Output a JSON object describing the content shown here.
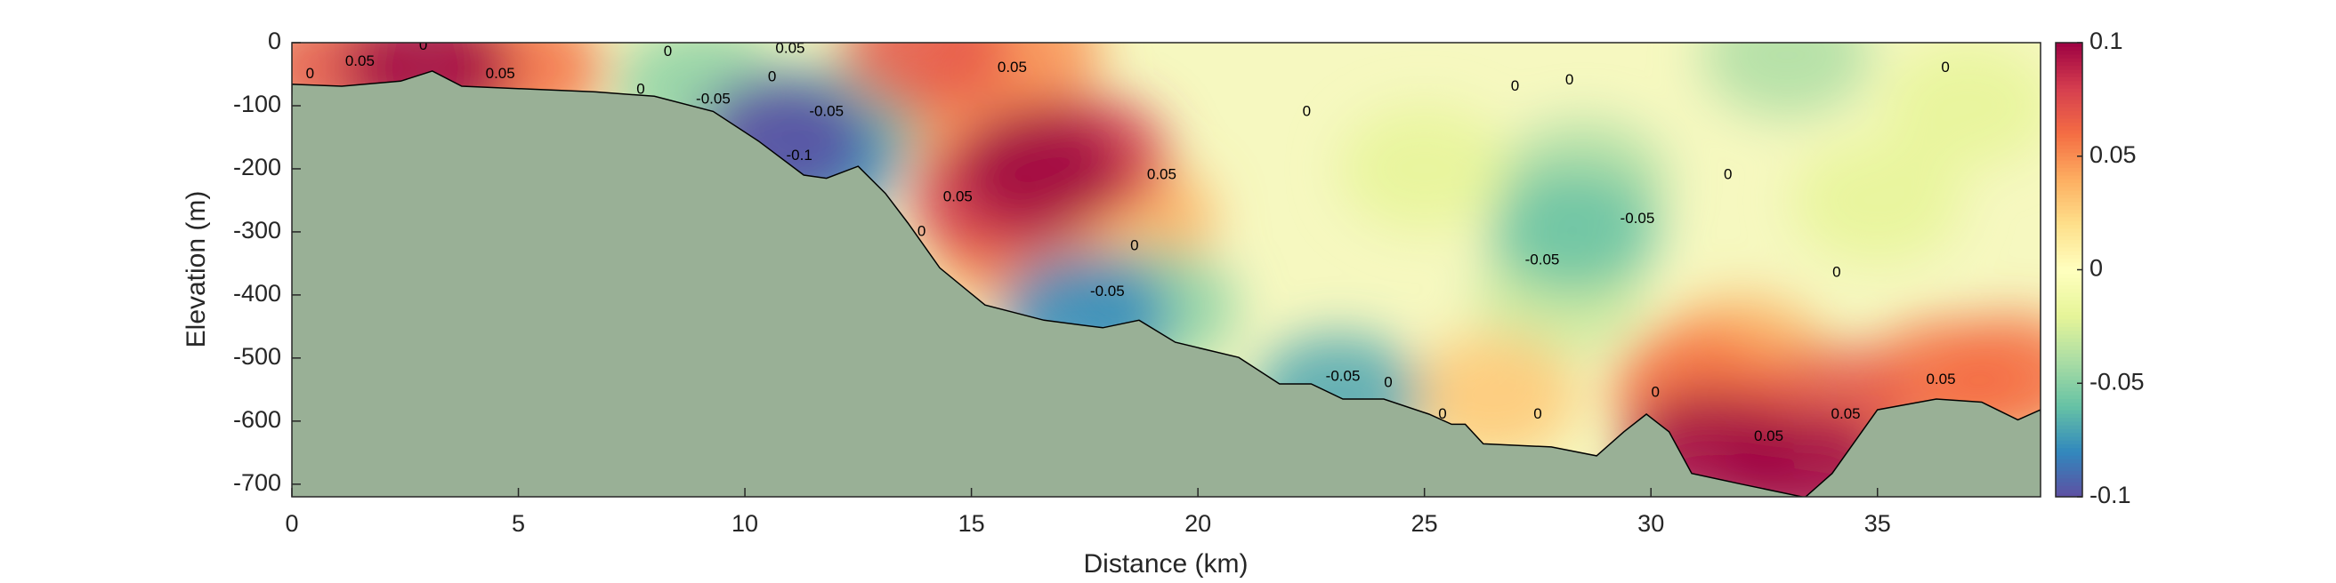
{
  "chart_data": {
    "type": "contour",
    "xlabel": "Distance (km)",
    "ylabel": "Elevation (m)",
    "xlim": [
      0,
      38.6
    ],
    "ylim": [
      -720,
      0
    ],
    "xticks": [
      0,
      5,
      10,
      15,
      20,
      25,
      30,
      35
    ],
    "yticks": [
      0,
      -100,
      -200,
      -300,
      -400,
      -500,
      -600,
      -700
    ],
    "clim": [
      -0.1,
      0.1
    ],
    "cticks": [
      0.1,
      0.05,
      0,
      -0.05,
      -0.1
    ],
    "colormap": "spectral-reversed",
    "seafloor_color": "#99b096",
    "field": [
      {
        "x": 35,
        "y": -250,
        "value": -0.02
      },
      {
        "x": 25,
        "y": -200,
        "value": -0.02
      },
      {
        "x": 37,
        "y": -100,
        "value": -0.02
      },
      {
        "x": 28,
        "y": -400,
        "value": -0.03
      },
      {
        "x": 32,
        "y": -500,
        "value": 0.04
      },
      {
        "x": 18.5,
        "y": -280,
        "value": 0.04
      },
      {
        "x": 26.5,
        "y": -560,
        "value": 0.03
      },
      {
        "x": 16,
        "y": -10,
        "value": 0.05
      },
      {
        "x": 15,
        "y": -120,
        "value": 0.05
      },
      {
        "x": 16,
        "y": -320,
        "value": 0.05
      },
      {
        "x": 28.5,
        "y": -220,
        "value": -0.04
      },
      {
        "x": 33,
        "y": -20,
        "value": -0.04
      },
      {
        "x": 19,
        "y": -420,
        "value": -0.05
      },
      {
        "x": 9,
        "y": -70,
        "value": -0.05
      },
      {
        "x": 5,
        "y": -40,
        "value": 0.06
      },
      {
        "x": 31,
        "y": -550,
        "value": 0.06
      },
      {
        "x": 36.5,
        "y": -540,
        "value": 0.06
      },
      {
        "x": 38,
        "y": -530,
        "value": 0.06
      },
      {
        "x": 12,
        "y": -130,
        "value": -0.06
      },
      {
        "x": 28.3,
        "y": -300,
        "value": -0.06
      },
      {
        "x": 14,
        "y": -10,
        "value": 0.07
      },
      {
        "x": 1,
        "y": -40,
        "value": 0.07
      },
      {
        "x": 34,
        "y": -580,
        "value": 0.07
      },
      {
        "x": 23.1,
        "y": -560,
        "value": -0.07
      },
      {
        "x": 15.5,
        "y": -250,
        "value": 0.08
      },
      {
        "x": 17.5,
        "y": -180,
        "value": 0.08
      },
      {
        "x": 11.5,
        "y": -190,
        "value": -0.08
      },
      {
        "x": 17.5,
        "y": -430,
        "value": -0.08
      },
      {
        "x": 16.5,
        "y": -200,
        "value": 0.1
      },
      {
        "x": 3,
        "y": -40,
        "value": 0.1
      },
      {
        "x": 31.3,
        "y": -650,
        "value": 0.1
      },
      {
        "x": 33.5,
        "y": -680,
        "value": 0.1
      },
      {
        "x": 10.8,
        "y": -150,
        "value": -0.1
      }
    ],
    "seafloor": {
      "x": [
        0,
        1.1,
        2.4,
        3.1,
        3.75,
        6.7,
        8,
        9.3,
        10.3,
        11.3,
        11.8,
        12.5,
        13.1,
        13.6,
        14.3,
        15.3,
        16.6,
        17.9,
        18.7,
        19.5,
        20.9,
        21.8,
        22.5,
        23.2,
        24.1,
        25.1,
        25.6,
        25.9,
        26.3,
        27.8,
        28.8,
        29.4,
        29.9,
        30.4,
        30.9,
        32,
        33.4,
        34,
        35,
        36.3,
        37.3,
        38.1,
        38.6
      ],
      "y": [
        -66,
        -69,
        -61,
        -45,
        -69,
        -78,
        -85,
        -109,
        -156,
        -210,
        -215,
        -196,
        -239,
        -286,
        -357,
        -416,
        -440,
        -452,
        -440,
        -475,
        -499,
        -541,
        -541,
        -565,
        -565,
        -589,
        -605,
        -605,
        -636,
        -641,
        -655,
        -617,
        -589,
        -617,
        -683,
        -700,
        -721,
        -683,
        -582,
        -565,
        -570,
        -598,
        -582
      ]
    },
    "contour_labels": [
      {
        "x": 0.4,
        "y": -50,
        "text": "0"
      },
      {
        "x": 1.5,
        "y": -30,
        "text": "0.05"
      },
      {
        "x": 2.9,
        "y": -5,
        "text": "0"
      },
      {
        "x": 4.6,
        "y": -50,
        "text": "0.05"
      },
      {
        "x": 8.3,
        "y": -15,
        "text": "0"
      },
      {
        "x": 7.7,
        "y": -75,
        "text": "0"
      },
      {
        "x": 9.3,
        "y": -90,
        "text": "-0.05"
      },
      {
        "x": 10.6,
        "y": -55,
        "text": "0"
      },
      {
        "x": 11,
        "y": -10,
        "text": "0.05"
      },
      {
        "x": 11.8,
        "y": -110,
        "text": "-0.05"
      },
      {
        "x": 11.2,
        "y": -180,
        "text": "-0.1"
      },
      {
        "x": 15.9,
        "y": -40,
        "text": "0.05"
      },
      {
        "x": 14.7,
        "y": -245,
        "text": "0.05"
      },
      {
        "x": 19.2,
        "y": -210,
        "text": "0.05"
      },
      {
        "x": 13.9,
        "y": -300,
        "text": "0"
      },
      {
        "x": 18.6,
        "y": -323,
        "text": "0"
      },
      {
        "x": 18,
        "y": -395,
        "text": "-0.05"
      },
      {
        "x": 22.4,
        "y": -110,
        "text": "0"
      },
      {
        "x": 23.2,
        "y": -530,
        "text": "-0.05"
      },
      {
        "x": 24.2,
        "y": -540,
        "text": "0"
      },
      {
        "x": 25.4,
        "y": -590,
        "text": "0"
      },
      {
        "x": 27.5,
        "y": -590,
        "text": "0"
      },
      {
        "x": 27,
        "y": -70,
        "text": "0"
      },
      {
        "x": 28.2,
        "y": -60,
        "text": "0"
      },
      {
        "x": 27.6,
        "y": -345,
        "text": "-0.05"
      },
      {
        "x": 29.7,
        "y": -280,
        "text": "-0.05"
      },
      {
        "x": 30.1,
        "y": -555,
        "text": "0"
      },
      {
        "x": 31.7,
        "y": -210,
        "text": "0"
      },
      {
        "x": 34.1,
        "y": -365,
        "text": "0"
      },
      {
        "x": 32.6,
        "y": -625,
        "text": "0.05"
      },
      {
        "x": 34.3,
        "y": -590,
        "text": "0.05"
      },
      {
        "x": 36.4,
        "y": -535,
        "text": "0.05"
      },
      {
        "x": 36.5,
        "y": -40,
        "text": "0"
      }
    ]
  }
}
